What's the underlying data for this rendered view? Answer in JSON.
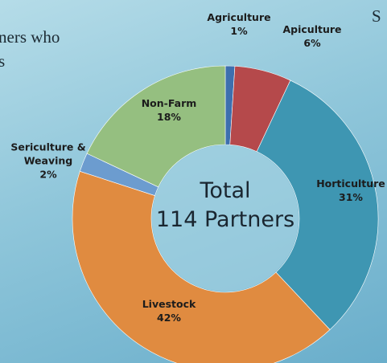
{
  "annotations": [
    "ners who",
    "s",
    "S"
  ],
  "chart_data": {
    "type": "donut",
    "categories": [
      "Agriculture",
      "Apiculture",
      "Horticulture",
      "Livestock",
      "Sericulture & Weaving",
      "Non-Farm"
    ],
    "values": [
      1,
      6,
      31,
      42,
      2,
      18
    ],
    "value_labels": [
      "1%",
      "6%",
      "31%",
      "42%",
      "2%",
      "18%"
    ],
    "colors": [
      "#3d6fae",
      "#b5494b",
      "#3e96b2",
      "#e08b40",
      "#6c9ccf",
      "#95bf80"
    ],
    "center_label": "Total",
    "center_value": "114 Partners"
  }
}
